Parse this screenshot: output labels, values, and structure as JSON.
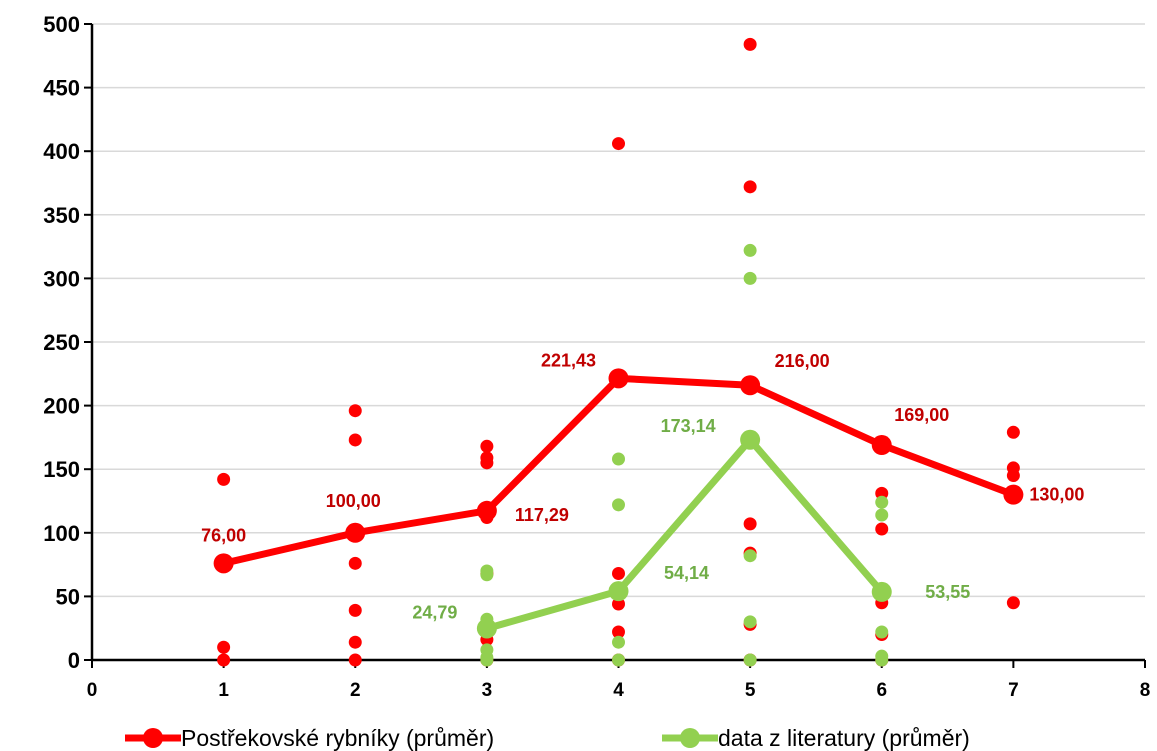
{
  "chart_data": {
    "type": "line",
    "xlim": [
      0,
      8
    ],
    "ylim": [
      0,
      500
    ],
    "x_ticks": [
      "0",
      "1",
      "2",
      "3",
      "4",
      "5",
      "6",
      "7",
      "8"
    ],
    "y_ticks": [
      "0",
      "50",
      "100",
      "150",
      "200",
      "250",
      "300",
      "350",
      "400",
      "450",
      "500"
    ],
    "grid": "horizontal",
    "legend_position": "bottom",
    "series": [
      {
        "name": "Postřekovské rybníky (průměr)",
        "color": "#ff0000",
        "label_color": "#c00000",
        "x": [
          1,
          2,
          3,
          4,
          5,
          6,
          7
        ],
        "y": [
          76,
          100,
          117.29,
          221.43,
          216,
          169,
          130
        ],
        "labels": [
          "76,00",
          "100,00",
          "117,29",
          "221,43",
          "216,00",
          "169,00",
          "130,00"
        ],
        "scatter": [
          [
            1,
            142
          ],
          [
            1,
            10
          ],
          [
            1,
            0
          ],
          [
            2,
            196
          ],
          [
            2,
            173
          ],
          [
            2,
            76
          ],
          [
            2,
            39
          ],
          [
            2,
            14
          ],
          [
            2,
            0
          ],
          [
            3,
            168
          ],
          [
            3,
            159
          ],
          [
            3,
            155
          ],
          [
            3,
            112
          ],
          [
            3,
            68
          ],
          [
            3,
            16
          ],
          [
            3,
            0
          ],
          [
            4,
            406
          ],
          [
            4,
            68
          ],
          [
            4,
            44
          ],
          [
            4,
            22
          ],
          [
            4,
            0
          ],
          [
            5,
            484
          ],
          [
            5,
            372
          ],
          [
            5,
            107
          ],
          [
            5,
            84
          ],
          [
            5,
            28
          ],
          [
            5,
            0
          ],
          [
            6,
            131
          ],
          [
            6,
            103
          ],
          [
            6,
            45
          ],
          [
            6,
            20
          ],
          [
            6,
            0
          ],
          [
            7,
            179
          ],
          [
            7,
            151
          ],
          [
            7,
            145
          ],
          [
            7,
            45
          ]
        ]
      },
      {
        "name": "data z literatury (průměr)",
        "color": "#92d050",
        "label_color": "#70ad47",
        "x": [
          3,
          4,
          5,
          6
        ],
        "y": [
          24.79,
          54.14,
          173.14,
          53.55
        ],
        "labels": [
          "24,79",
          "54,14",
          "173,14",
          "53,55"
        ],
        "scatter": [
          [
            3,
            70
          ],
          [
            3,
            67
          ],
          [
            3,
            32
          ],
          [
            3,
            8
          ],
          [
            3,
            2
          ],
          [
            3,
            0
          ],
          [
            4,
            158
          ],
          [
            4,
            122
          ],
          [
            4,
            14
          ],
          [
            4,
            0
          ],
          [
            5,
            322
          ],
          [
            5,
            300
          ],
          [
            5,
            82
          ],
          [
            5,
            30
          ],
          [
            5,
            0
          ],
          [
            6,
            124
          ],
          [
            6,
            114
          ],
          [
            6,
            22
          ],
          [
            6,
            3
          ],
          [
            6,
            0
          ]
        ]
      }
    ]
  }
}
